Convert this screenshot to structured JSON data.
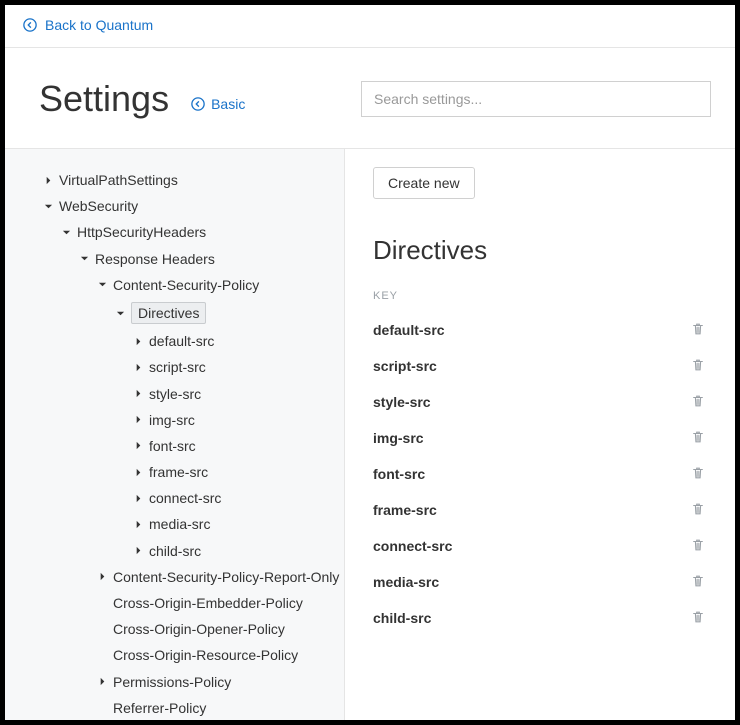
{
  "topbar": {
    "back_label": "Back to Quantum"
  },
  "header": {
    "title": "Settings",
    "basic_label": "Basic",
    "search_placeholder": "Search settings..."
  },
  "tree": [
    {
      "label": "VirtualPathSettings",
      "level": 0,
      "caret": "right",
      "selected": false
    },
    {
      "label": "WebSecurity",
      "level": 0,
      "caret": "down",
      "selected": false
    },
    {
      "label": "HttpSecurityHeaders",
      "level": 1,
      "caret": "down",
      "selected": false
    },
    {
      "label": "Response Headers",
      "level": 2,
      "caret": "down",
      "selected": false
    },
    {
      "label": "Content-Security-Policy",
      "level": 3,
      "caret": "down",
      "selected": false
    },
    {
      "label": "Directives",
      "level": 4,
      "caret": "down",
      "selected": true
    },
    {
      "label": "default-src",
      "level": 5,
      "caret": "right",
      "selected": false
    },
    {
      "label": "script-src",
      "level": 5,
      "caret": "right",
      "selected": false
    },
    {
      "label": "style-src",
      "level": 5,
      "caret": "right",
      "selected": false
    },
    {
      "label": "img-src",
      "level": 5,
      "caret": "right",
      "selected": false
    },
    {
      "label": "font-src",
      "level": 5,
      "caret": "right",
      "selected": false
    },
    {
      "label": "frame-src",
      "level": 5,
      "caret": "right",
      "selected": false
    },
    {
      "label": "connect-src",
      "level": 5,
      "caret": "right",
      "selected": false
    },
    {
      "label": "media-src",
      "level": 5,
      "caret": "right",
      "selected": false
    },
    {
      "label": "child-src",
      "level": 5,
      "caret": "right",
      "selected": false
    },
    {
      "label": "Content-Security-Policy-Report-Only",
      "level": 3,
      "caret": "right",
      "selected": false
    },
    {
      "label": "Cross-Origin-Embedder-Policy",
      "level": 3,
      "caret": "none",
      "selected": false
    },
    {
      "label": "Cross-Origin-Opener-Policy",
      "level": 3,
      "caret": "none",
      "selected": false
    },
    {
      "label": "Cross-Origin-Resource-Policy",
      "level": 3,
      "caret": "none",
      "selected": false
    },
    {
      "label": "Permissions-Policy",
      "level": 3,
      "caret": "right",
      "selected": false
    },
    {
      "label": "Referrer-Policy",
      "level": 3,
      "caret": "none",
      "selected": false
    }
  ],
  "main": {
    "create_label": "Create new",
    "section_title": "Directives",
    "key_header": "KEY",
    "directives": [
      "default-src",
      "script-src",
      "style-src",
      "img-src",
      "font-src",
      "frame-src",
      "connect-src",
      "media-src",
      "child-src"
    ]
  }
}
